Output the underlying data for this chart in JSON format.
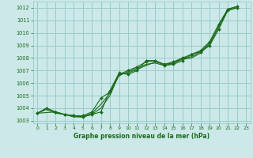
{
  "title": "Graphe pression niveau de la mer (hPa)",
  "bg_color": "#cce8e8",
  "grid_color": "#99cccc",
  "line_color": "#1a6b1a",
  "xlim": [
    -0.5,
    23.5
  ],
  "ylim": [
    1002.8,
    1012.5
  ],
  "yticks": [
    1003,
    1004,
    1005,
    1006,
    1007,
    1008,
    1009,
    1010,
    1011,
    1012
  ],
  "xticks": [
    0,
    1,
    2,
    3,
    4,
    5,
    6,
    7,
    8,
    9,
    10,
    11,
    12,
    13,
    14,
    15,
    16,
    17,
    18,
    19,
    20,
    21,
    22,
    23
  ],
  "series": [
    {
      "x": [
        0,
        1,
        2,
        3,
        4,
        5,
        6,
        7,
        8,
        9,
        10,
        11,
        12,
        13,
        14,
        15,
        16,
        17,
        18,
        19,
        20,
        21,
        22
      ],
      "y": [
        1003.6,
        1004.0,
        1003.7,
        1003.5,
        1003.4,
        1003.3,
        1003.5,
        1003.7,
        1005.4,
        1006.8,
        1006.7,
        1007.0,
        1007.8,
        1007.8,
        1007.4,
        1007.5,
        1007.8,
        1008.3,
        1008.5,
        1009.0,
        1010.3,
        1011.8,
        1012.0
      ],
      "marker": true
    },
    {
      "x": [
        0,
        1,
        2,
        3,
        4,
        5,
        6,
        7,
        8,
        9,
        10,
        11,
        12,
        13,
        14,
        15,
        16,
        17,
        18,
        19,
        20,
        21,
        22
      ],
      "y": [
        1003.6,
        1004.0,
        1003.7,
        1003.5,
        1003.4,
        1003.3,
        1003.5,
        1004.0,
        1005.0,
        1006.7,
        1006.8,
        1007.1,
        1007.4,
        1007.7,
        1007.5,
        1007.6,
        1008.0,
        1008.1,
        1008.5,
        1009.2,
        1010.5,
        1011.9,
        1012.1
      ],
      "marker": false
    },
    {
      "x": [
        0,
        1,
        2,
        3,
        4,
        5,
        6,
        7,
        8,
        9,
        10,
        11,
        12,
        13,
        14,
        15,
        16,
        17,
        18,
        19,
        20,
        21,
        22
      ],
      "y": [
        1003.6,
        1003.9,
        1003.6,
        1003.5,
        1003.3,
        1003.3,
        1003.6,
        1004.3,
        1005.2,
        1006.6,
        1006.9,
        1007.2,
        1007.5,
        1007.6,
        1007.4,
        1007.6,
        1007.9,
        1008.0,
        1008.4,
        1009.1,
        1010.5,
        1011.8,
        1012.0
      ],
      "marker": false
    },
    {
      "x": [
        0,
        2,
        3,
        4,
        5,
        6,
        7,
        8,
        9,
        10,
        11,
        12,
        13,
        14,
        15,
        16,
        17,
        18,
        19,
        20,
        21,
        22
      ],
      "y": [
        1003.6,
        1003.7,
        1003.5,
        1003.4,
        1003.4,
        1003.7,
        1004.8,
        1005.3,
        1006.7,
        1007.0,
        1007.3,
        1007.7,
        1007.8,
        1007.5,
        1007.7,
        1008.0,
        1008.3,
        1008.6,
        1009.3,
        1010.7,
        1011.9,
        1012.1
      ],
      "marker": true
    }
  ]
}
